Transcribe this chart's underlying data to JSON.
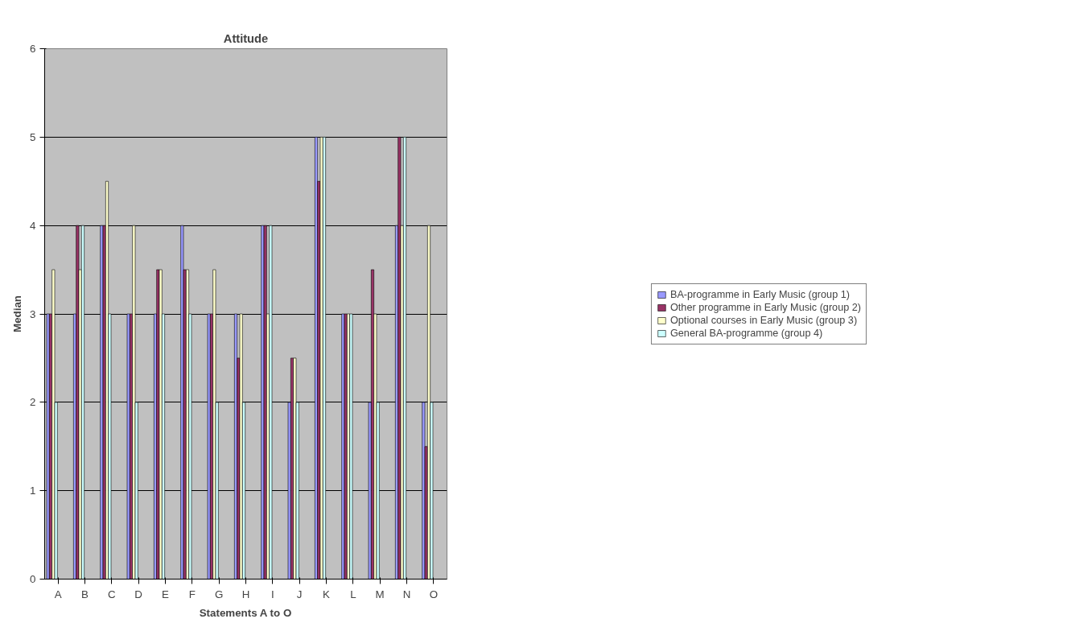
{
  "chart_data": {
    "type": "bar",
    "title": "Attitude",
    "xlabel": "Statements A to O",
    "ylabel": "Median",
    "categories": [
      "A",
      "B",
      "C",
      "D",
      "E",
      "F",
      "G",
      "H",
      "I",
      "J",
      "K",
      "L",
      "M",
      "N",
      "O"
    ],
    "series": [
      {
        "name": "BA-programme in Early Music (group 1)",
        "color": "#9999ff",
        "values": [
          3,
          3,
          4,
          3,
          3,
          4,
          3,
          3,
          4,
          2,
          5,
          3,
          2,
          4,
          2
        ]
      },
      {
        "name": "Other programme in Early Music (group 2)",
        "color": "#993366",
        "values": [
          3,
          4,
          4,
          3,
          3.5,
          3.5,
          3,
          2.5,
          4,
          2.5,
          4.5,
          3,
          3.5,
          5,
          1.5
        ]
      },
      {
        "name": "Optional courses in Early Music (group 3)",
        "color": "#ffffcc",
        "values": [
          3.5,
          3.5,
          4.5,
          4,
          3.5,
          3.5,
          3.5,
          3,
          3,
          2.5,
          5,
          3,
          3,
          4,
          4
        ]
      },
      {
        "name": "General BA-programme (group 4)",
        "color": "#ccffff",
        "values": [
          2,
          4,
          3,
          2,
          3,
          3,
          2,
          2,
          4,
          2,
          5,
          3,
          2,
          5,
          2
        ]
      }
    ],
    "ylim": [
      0,
      6
    ],
    "yticks": [
      0,
      1,
      2,
      3,
      4,
      5,
      6
    ],
    "grid": "y",
    "legend": "right"
  }
}
